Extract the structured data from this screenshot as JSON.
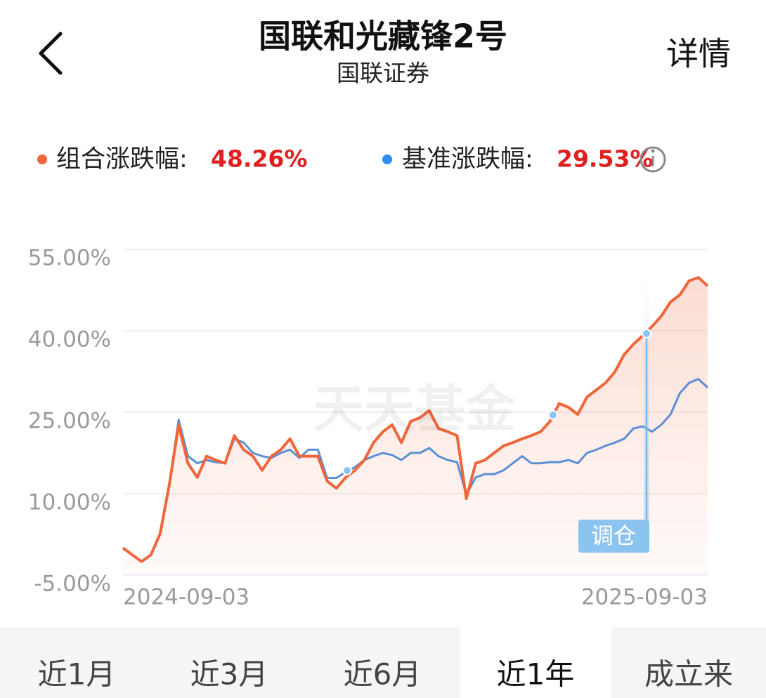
{
  "header": {
    "title": "国联和光藏锋2号",
    "subtitle": "国联证券",
    "detail": "详情"
  },
  "legend": {
    "portfolio_label": "组合涨跌幅:",
    "portfolio_value": "48.26%",
    "benchmark_label": "基准涨跌幅:",
    "benchmark_value": "29.53%"
  },
  "chart_data": {
    "type": "line",
    "watermark": "天天基金",
    "annotation": "调仓",
    "categories": [
      "2024-09-03",
      null,
      null,
      null,
      null,
      null,
      null,
      null,
      null,
      null,
      null,
      null,
      null,
      null,
      null,
      null,
      null,
      null,
      null,
      null,
      null,
      null,
      null,
      null,
      null,
      null,
      null,
      null,
      null,
      null,
      null,
      null,
      null,
      null,
      null,
      null,
      null,
      null,
      null,
      null,
      null,
      null,
      null,
      null,
      null,
      null,
      null,
      null,
      null,
      null,
      null,
      null,
      null,
      null,
      null,
      null,
      null,
      null,
      null,
      null,
      null,
      null,
      null,
      "2025-09-03"
    ],
    "series": [
      {
        "name": "组合",
        "color": "#f0663a",
        "values": [
          0,
          -1.25,
          -2.5,
          -1.3,
          2.6,
          11.7,
          22.7,
          15.6,
          13,
          16.9,
          16.2,
          15.6,
          20.7,
          18.1,
          16.9,
          14.3,
          16.9,
          18.1,
          20.1,
          16.9,
          16.9,
          16.9,
          12.3,
          11,
          13,
          14.3,
          16.2,
          19.4,
          21.4,
          22.7,
          19.4,
          23.3,
          24,
          25.3,
          22,
          21.4,
          20.7,
          9.1,
          15.6,
          16.2,
          17.5,
          18.8,
          19.4,
          20.1,
          20.7,
          21.4,
          23.3,
          26.6,
          25.9,
          24.6,
          27.8,
          29.1,
          30.4,
          32.4,
          35.6,
          37.5,
          39.1,
          40.8,
          42.7,
          45.3,
          46.6,
          49.2,
          49.8,
          48.26
        ]
      },
      {
        "name": "基准",
        "color": "#5b8fd6",
        "values": [
          0,
          -1.25,
          -2.5,
          -1.3,
          2.6,
          11.7,
          23.6,
          16.9,
          15.6,
          16.2,
          15.8,
          15.6,
          20.1,
          19.4,
          17.5,
          16.9,
          16.6,
          17.5,
          18.1,
          16.6,
          18.1,
          18.1,
          12.9,
          12.9,
          14,
          14.9,
          16.2,
          16.9,
          17.5,
          17.1,
          16.2,
          17.5,
          17.5,
          18.4,
          16.9,
          16.2,
          15.8,
          9.8,
          13,
          13.6,
          13.6,
          14.3,
          15.6,
          16.9,
          15.6,
          15.6,
          15.8,
          15.8,
          16.2,
          15.6,
          17.5,
          18.1,
          18.8,
          19.4,
          20.1,
          22,
          22.4,
          21.4,
          22.7,
          24.6,
          28.5,
          30.4,
          31.1,
          29.53
        ]
      }
    ],
    "ylim": [
      -5,
      55
    ],
    "yticks": [
      {
        "value": 55,
        "label": "55.00%"
      },
      {
        "value": 40,
        "label": "40.00%"
      },
      {
        "value": 25,
        "label": "25.00%"
      },
      {
        "value": 10,
        "label": "10.00%"
      },
      {
        "value": -5,
        "label": "-5.00%"
      }
    ],
    "grid": true
  },
  "tabs": [
    "近1月",
    "近3月",
    "近6月",
    "近1年",
    "成立来"
  ]
}
